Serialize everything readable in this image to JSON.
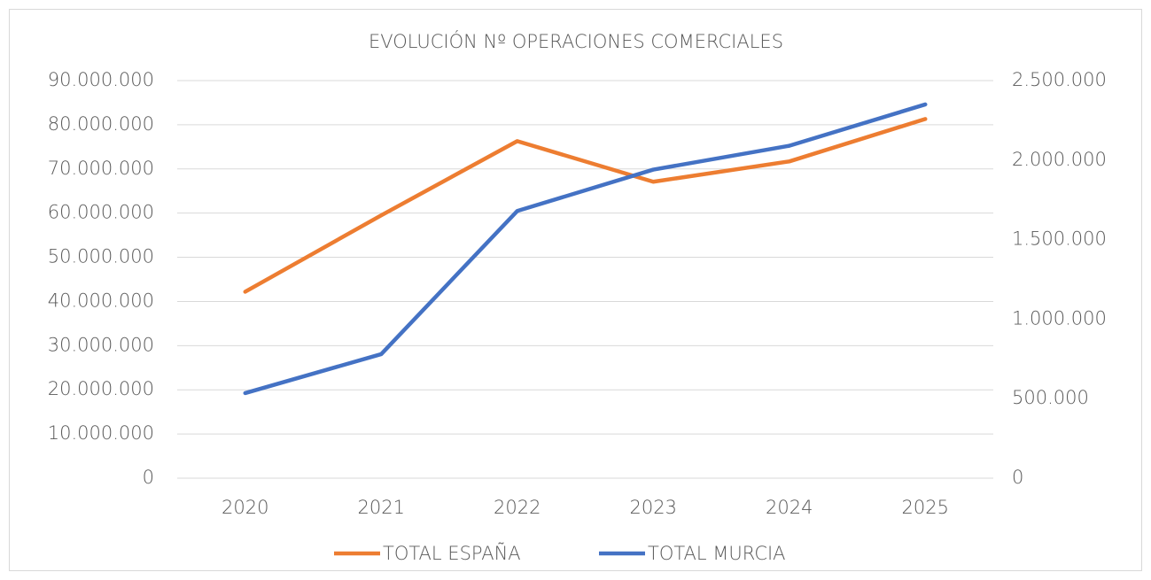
{
  "chart_data": {
    "type": "line",
    "title": "EVOLUCIÓN Nº OPERACIONES COMERCIALES",
    "categories": [
      "2020",
      "2021",
      "2022",
      "2023",
      "2024",
      "2025"
    ],
    "series": [
      {
        "name": "TOTAL ESPAÑA",
        "color": "#ed7d31",
        "axis": "y",
        "values": [
          42200000,
          59500000,
          76300000,
          67100000,
          71700000,
          81300000
        ]
      },
      {
        "name": "TOTAL MURCIA",
        "color": "#4472c4",
        "axis": "y2",
        "values": [
          535000,
          780000,
          1680000,
          1940000,
          2090000,
          2350000
        ]
      }
    ],
    "ylim": [
      0,
      90000000
    ],
    "yticks": [
      0,
      {
        "value": 10000000,
        "label": "10.000.000"
      },
      {
        "value": 20000000,
        "label": "20.000.000"
      },
      {
        "value": 30000000,
        "label": "30.000.000"
      },
      {
        "value": 40000000,
        "label": "40.000.000"
      },
      {
        "value": 50000000,
        "label": "50.000.000"
      },
      {
        "value": 60000000,
        "label": "60.000.000"
      },
      {
        "value": 70000000,
        "label": "70.000.000"
      },
      {
        "value": 80000000,
        "label": "80.000.000"
      },
      {
        "value": 90000000,
        "label": "90.000.000"
      }
    ],
    "y2lim": [
      0,
      2500000
    ],
    "y2ticks": [
      0,
      {
        "value": 500000,
        "label": "500.000"
      },
      {
        "value": 1000000,
        "label": "1.000.000"
      },
      {
        "value": 1500000,
        "label": "1.500.000"
      },
      {
        "value": 2000000,
        "label": "2.000.000"
      },
      {
        "value": 2500000,
        "label": "2.500.000"
      }
    ],
    "grid": true,
    "legend": "bottom"
  }
}
